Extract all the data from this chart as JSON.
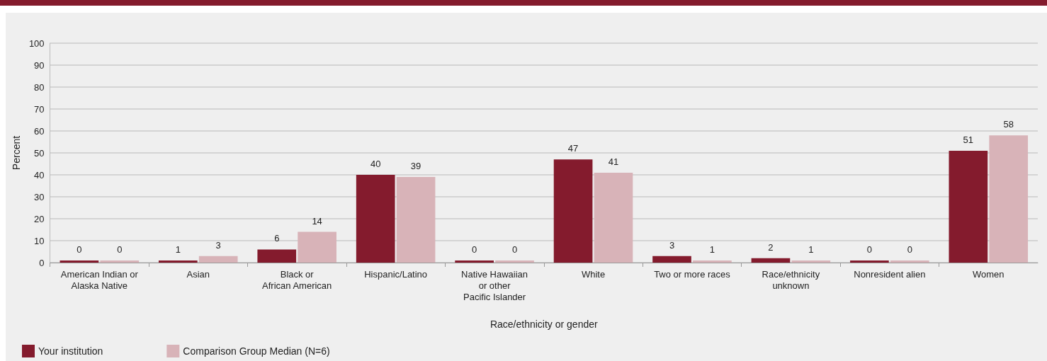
{
  "chart_data": {
    "type": "bar",
    "xlabel": "Race/ethnicity or gender",
    "ylabel": "Percent",
    "categories": [
      "American Indian or\nAlaska Native",
      "Asian",
      "Black or\nAfrican American",
      "Hispanic/Latino",
      "Native Hawaiian\nor other\nPacific Islander",
      "White",
      "Two or more races",
      "Race/ethnicity\nunknown",
      "Nonresident alien",
      "Women"
    ],
    "series": [
      {
        "name": "Your institution",
        "color": "#841b2d",
        "values": [
          0,
          1,
          6,
          40,
          0,
          47,
          3,
          2,
          0,
          51
        ]
      },
      {
        "name": "Comparison Group Median (N=6)",
        "color": "#d8b3b8",
        "values": [
          0,
          3,
          14,
          39,
          0,
          41,
          1,
          1,
          0,
          58
        ]
      }
    ],
    "ylim": [
      0,
      100
    ],
    "yticks": [
      0,
      10,
      20,
      30,
      40,
      50,
      60,
      70,
      80,
      90,
      100
    ],
    "grid": "y",
    "legend": "bottom left",
    "data_labels": true
  }
}
